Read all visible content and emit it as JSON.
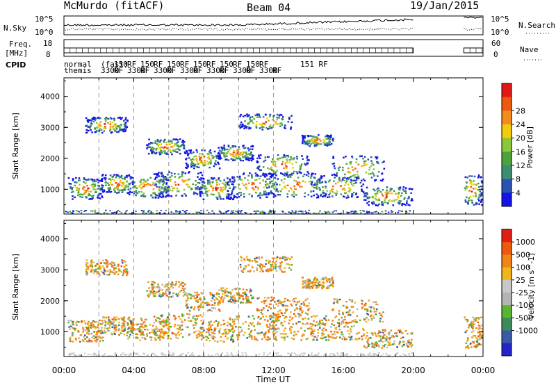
{
  "header": {
    "station": "McMurdo (fitACF)",
    "beam": "Beam 04",
    "date": "19/Jan/2015"
  },
  "chart_data": [
    {
      "type": "line",
      "panel": "noise",
      "left_label": "N.Sky",
      "right_label": "N.Search",
      "left_ticks": [
        "10^5",
        "10^0"
      ],
      "right_ticks": [
        "10^5",
        "10^0"
      ],
      "yscale": "log",
      "data_hours": [
        [
          0,
          20.0
        ],
        [
          22.9,
          24.0
        ]
      ]
    },
    {
      "type": "line",
      "panel": "frequency",
      "left_label_lines": [
        "Freq.",
        "[MHz]"
      ],
      "left_ticks": [
        18,
        8
      ],
      "right_ticks": [
        60,
        0
      ],
      "right_label": "Nave",
      "data_hours": [
        [
          0,
          20.0
        ],
        [
          22.9,
          24.0
        ]
      ]
    },
    {
      "type": "table",
      "panel": "cpid",
      "label": "CPID",
      "rows": [
        [
          "normal",
          "(fast)",
          "150",
          "RF",
          "150",
          "RF",
          "150",
          "RF",
          "150",
          "RF",
          "150",
          "RF",
          "150",
          "RF"
        ],
        [
          "themis",
          "3300",
          "RF",
          "3300",
          "RF",
          "3300",
          "RF",
          "3300",
          "RF",
          "3300",
          "RF",
          "3300",
          "RF",
          "3300",
          "RF"
        ]
      ],
      "last_entry": "151  RF"
    },
    {
      "type": "heatmap",
      "panel": "power",
      "ylabel": "Slant Range [km]",
      "yticks": [
        1000,
        2000,
        3000,
        4000
      ],
      "ylim": [
        200,
        4600
      ],
      "colorbar_label": "Power [dB]",
      "colorbar_ticks": [
        4,
        8,
        12,
        16,
        20,
        24,
        28
      ],
      "colorbar_colors": [
        "#1414e6",
        "#2a52b0",
        "#3d8d70",
        "#4ea23c",
        "#8cc83c",
        "#f2cc0c",
        "#f28c1c",
        "#ec5a10",
        "#e01818"
      ],
      "data_hours": [
        [
          0,
          20.0
        ],
        [
          22.9,
          24.0
        ]
      ]
    },
    {
      "type": "heatmap",
      "panel": "velocity",
      "ylabel": "Slant Range [km]",
      "yticks": [
        1000,
        2000,
        3000,
        4000
      ],
      "ylim": [
        200,
        4600
      ],
      "colorbar_label": "Velocity [m s^-1]",
      "colorbar_ticks": [
        1000,
        500,
        100,
        25,
        -25,
        -100,
        -500,
        -1000
      ],
      "colorbar_colors": [
        "#2424c8",
        "#3a5aa8",
        "#3c8a5a",
        "#5ab432",
        "#b4b4b4",
        "#c8c8c8",
        "#f2b41c",
        "#f08414",
        "#ec5a0c",
        "#e02014"
      ],
      "data_hours": [
        [
          0,
          20.0
        ],
        [
          22.9,
          24.0
        ]
      ]
    }
  ],
  "xaxis": {
    "label": "Time UT",
    "ticks": [
      "00:00",
      "04:00",
      "08:00",
      "12:00",
      "16:00",
      "20:00",
      "00:00"
    ],
    "range_hours": [
      0,
      24
    ],
    "dashed_hours": [
      2,
      4,
      6,
      8,
      10,
      12
    ]
  }
}
